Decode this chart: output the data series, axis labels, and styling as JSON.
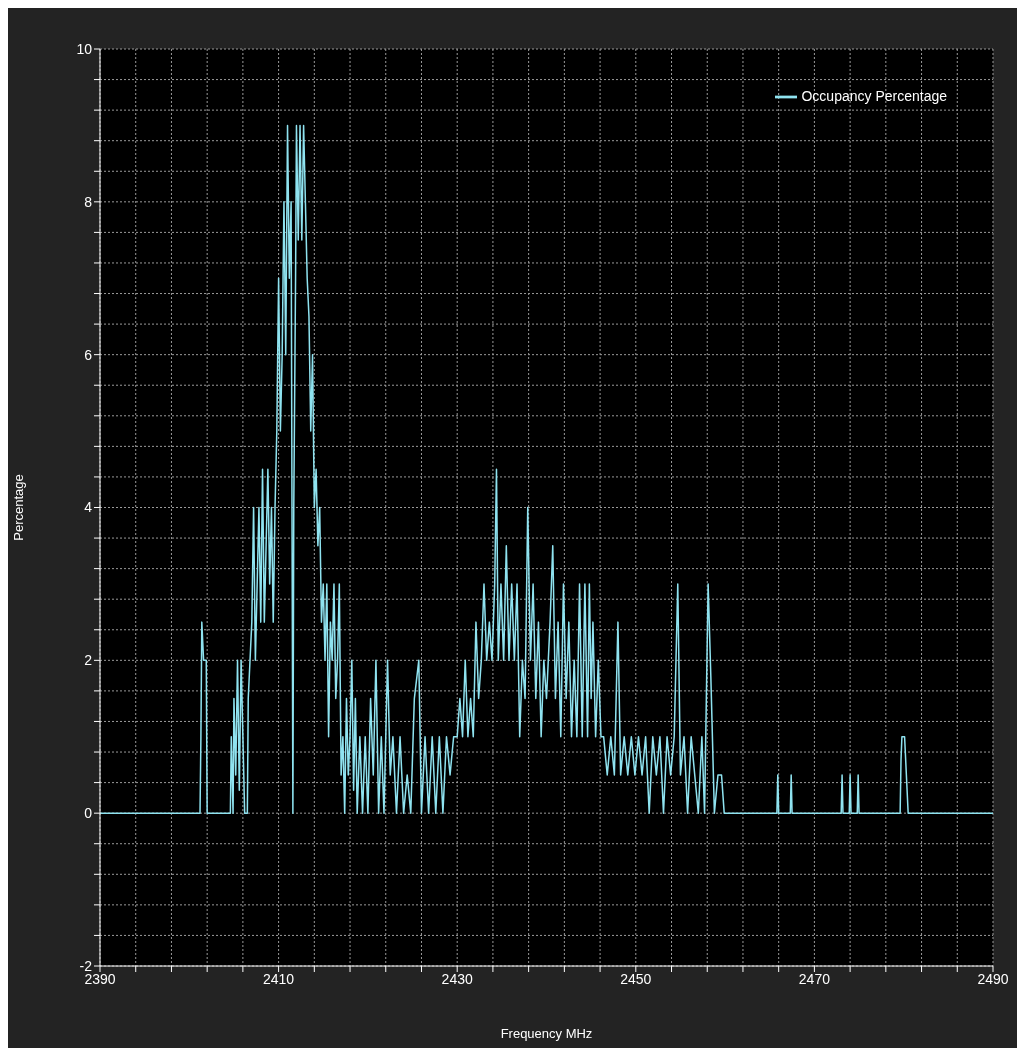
{
  "chart_data": {
    "type": "line",
    "xlabel": "Frequency MHz",
    "ylabel": "Percentage",
    "xlim": [
      2390,
      2490
    ],
    "ylim": [
      -2,
      10
    ],
    "xticks": [
      2390,
      {
        "value": 2394,
        "label": null
      },
      {
        "value": 2398,
        "label": null
      },
      {
        "value": 2402,
        "label": null
      },
      {
        "value": 2406,
        "label": null
      },
      2410,
      {
        "value": 2414,
        "label": null
      },
      {
        "value": 2418,
        "label": null
      },
      {
        "value": 2422,
        "label": null
      },
      {
        "value": 2426,
        "label": null
      },
      2430,
      {
        "value": 2434,
        "label": null
      },
      {
        "value": 2438,
        "label": null
      },
      {
        "value": 2442,
        "label": null
      },
      {
        "value": 2446,
        "label": null
      },
      2450,
      {
        "value": 2454,
        "label": null
      },
      {
        "value": 2458,
        "label": null
      },
      {
        "value": 2462,
        "label": null
      },
      {
        "value": 2466,
        "label": null
      },
      2470,
      {
        "value": 2474,
        "label": null
      },
      {
        "value": 2478,
        "label": null
      },
      {
        "value": 2482,
        "label": null
      },
      {
        "value": 2486,
        "label": null
      },
      2490
    ],
    "yticks": [
      -2,
      {
        "value": -1.6,
        "label": null
      },
      {
        "value": -1.2,
        "label": null
      },
      {
        "value": -0.8,
        "label": null
      },
      {
        "value": -0.4,
        "label": null
      },
      0,
      {
        "value": 0.4,
        "label": null
      },
      {
        "value": 0.8,
        "label": null
      },
      {
        "value": 1.2,
        "label": null
      },
      {
        "value": 1.6,
        "label": null
      },
      2,
      {
        "value": 2.4,
        "label": null
      },
      {
        "value": 2.8,
        "label": null
      },
      {
        "value": 3.2,
        "label": null
      },
      {
        "value": 3.6,
        "label": null
      },
      4,
      {
        "value": 4.4,
        "label": null
      },
      {
        "value": 4.8,
        "label": null
      },
      {
        "value": 5.2,
        "label": null
      },
      {
        "value": 5.6,
        "label": null
      },
      6,
      {
        "value": 6.4,
        "label": null
      },
      {
        "value": 6.8,
        "label": null
      },
      {
        "value": 7.2,
        "label": null
      },
      {
        "value": 7.6,
        "label": null
      },
      8,
      {
        "value": 8.4,
        "label": null
      },
      {
        "value": 8.8,
        "label": null
      },
      {
        "value": 9.2,
        "label": null
      },
      {
        "value": 9.6,
        "label": null
      },
      10
    ],
    "grid": true,
    "legend": "top right",
    "marker": "none",
    "line_style": "solid",
    "series": [
      {
        "name": "Occupancy Percentage",
        "color": "#8fe3f0",
        "x": [
          2390,
          2401.2,
          2401.3,
          2401.4,
          2401.6,
          2401.9,
          2402.0,
          2404.6,
          2404.7,
          2404.9,
          2405.0,
          2405.2,
          2405.4,
          2405.6,
          2405.8,
          2406.0,
          2406.2,
          2406.5,
          2406.6,
          2406.8,
          2407.0,
          2407.2,
          2407.4,
          2407.6,
          2407.8,
          2408.0,
          2408.2,
          2408.4,
          2408.6,
          2408.8,
          2409.0,
          2409.2,
          2409.4,
          2409.6,
          2409.8,
          2410.0,
          2410.2,
          2410.4,
          2410.6,
          2410.8,
          2411.0,
          2411.2,
          2411.4,
          2411.5,
          2411.6,
          2411.7,
          2411.9,
          2412.0,
          2412.2,
          2412.4,
          2412.6,
          2412.8,
          2413.0,
          2413.2,
          2413.4,
          2413.6,
          2413.8,
          2414.0,
          2414.2,
          2414.4,
          2414.6,
          2414.8,
          2415.0,
          2415.2,
          2415.4,
          2415.6,
          2415.8,
          2416.0,
          2416.2,
          2416.4,
          2416.6,
          2416.8,
          2417.0,
          2417.2,
          2417.4,
          2417.6,
          2417.8,
          2418.0,
          2418.2,
          2418.4,
          2418.6,
          2418.8,
          2419.1,
          2419.4,
          2419.7,
          2420.0,
          2420.3,
          2420.6,
          2420.9,
          2421.2,
          2421.5,
          2421.8,
          2422.2,
          2422.5,
          2422.8,
          2423.2,
          2423.6,
          2424.0,
          2424.4,
          2424.8,
          2425.2,
          2425.7,
          2426.0,
          2426.4,
          2426.8,
          2427.2,
          2427.6,
          2428.0,
          2428.4,
          2428.8,
          2429.2,
          2429.6,
          2430.0,
          2430.3,
          2430.6,
          2430.9,
          2431.2,
          2431.5,
          2431.8,
          2432.1,
          2432.4,
          2432.7,
          2433.0,
          2433.3,
          2433.6,
          2433.9,
          2434.2,
          2434.4,
          2434.6,
          2434.9,
          2435.2,
          2435.5,
          2435.8,
          2436.1,
          2436.4,
          2436.7,
          2437.0,
          2437.3,
          2437.6,
          2437.9,
          2438.2,
          2438.5,
          2438.8,
          2439.1,
          2439.4,
          2439.7,
          2440.0,
          2440.4,
          2440.7,
          2441.0,
          2441.3,
          2441.6,
          2441.9,
          2442.2,
          2442.5,
          2442.8,
          2443.1,
          2443.4,
          2443.7,
          2444.0,
          2444.3,
          2444.6,
          2444.8,
          2445.0,
          2445.2,
          2445.5,
          2445.8,
          2446.1,
          2446.4,
          2446.8,
          2447.2,
          2447.6,
          2448.0,
          2448.3,
          2448.7,
          2449.1,
          2449.5,
          2449.9,
          2450.3,
          2450.7,
          2451.1,
          2451.5,
          2451.9,
          2452.3,
          2452.7,
          2453.1,
          2453.5,
          2453.9,
          2454.3,
          2454.7,
          2455.0,
          2455.4,
          2455.8,
          2456.2,
          2456.6,
          2457.0,
          2457.4,
          2457.7,
          2458.1,
          2458.4,
          2458.8,
          2459.2,
          2459.6,
          2459.9,
          2465.8,
          2465.9,
          2466.0,
          2467.3,
          2467.4,
          2467.5,
          2473.0,
          2473.1,
          2473.2,
          2473.9,
          2474.0,
          2474.1,
          2474.8,
          2474.9,
          2475.0,
          2479.6,
          2479.7,
          2479.8,
          2480.1,
          2480.3,
          2480.5,
          2490
        ],
        "values": [
          0,
          0,
          1,
          2.5,
          2,
          2,
          0,
          0,
          1,
          0,
          1.5,
          0.5,
          2,
          0.3,
          2,
          1,
          0,
          0,
          1.5,
          2,
          2.5,
          4,
          2,
          3,
          4,
          2.5,
          4.5,
          2.5,
          3.5,
          4.5,
          3,
          4,
          2.5,
          4,
          5,
          7,
          5,
          6,
          8,
          6,
          9,
          7,
          8,
          4,
          0,
          4,
          7,
          9,
          7.5,
          9,
          7.5,
          9,
          8,
          7,
          6.5,
          5,
          6,
          4,
          4.5,
          3.5,
          4,
          2.5,
          3,
          2,
          3,
          1,
          2.5,
          2,
          3,
          1.5,
          2,
          3,
          0.5,
          1,
          0,
          1.5,
          0.5,
          1,
          2,
          0.3,
          1.5,
          0,
          1,
          0,
          1,
          0,
          1.5,
          0.5,
          2,
          0,
          1,
          0,
          2,
          0.5,
          1,
          0,
          1,
          0,
          0.5,
          0,
          1.5,
          2,
          0,
          1,
          0,
          1,
          0,
          1,
          0,
          1,
          0.5,
          1,
          1,
          1.5,
          1,
          2,
          1,
          1.5,
          1,
          2.5,
          1.5,
          2,
          3,
          2,
          2.5,
          2,
          3,
          4.5,
          2,
          3,
          2,
          3.5,
          2,
          3,
          2,
          3,
          1,
          2,
          1.5,
          4,
          2,
          3,
          1.5,
          2.5,
          1,
          2,
          1.5,
          2.5,
          3.5,
          1.5,
          2.5,
          1,
          3,
          1.5,
          2.5,
          1,
          2,
          1,
          3,
          1,
          3,
          1,
          3,
          1.5,
          2.5,
          1,
          2,
          1,
          1,
          0.5,
          1,
          0.5,
          2.5,
          0.5,
          1,
          0.5,
          1,
          0.5,
          1,
          0.5,
          1,
          0,
          1,
          0.5,
          1,
          0,
          1,
          0.5,
          1,
          3,
          0.5,
          1,
          0,
          1,
          0.5,
          0,
          1,
          0,
          3,
          1.8,
          0,
          0.5,
          0.5,
          0,
          0,
          0.5,
          0,
          0,
          0.5,
          0,
          0,
          0.5,
          0,
          0,
          0.5,
          0,
          0,
          0.5,
          0,
          0,
          0.7,
          1,
          1,
          0.5,
          0,
          0
        ]
      }
    ]
  }
}
